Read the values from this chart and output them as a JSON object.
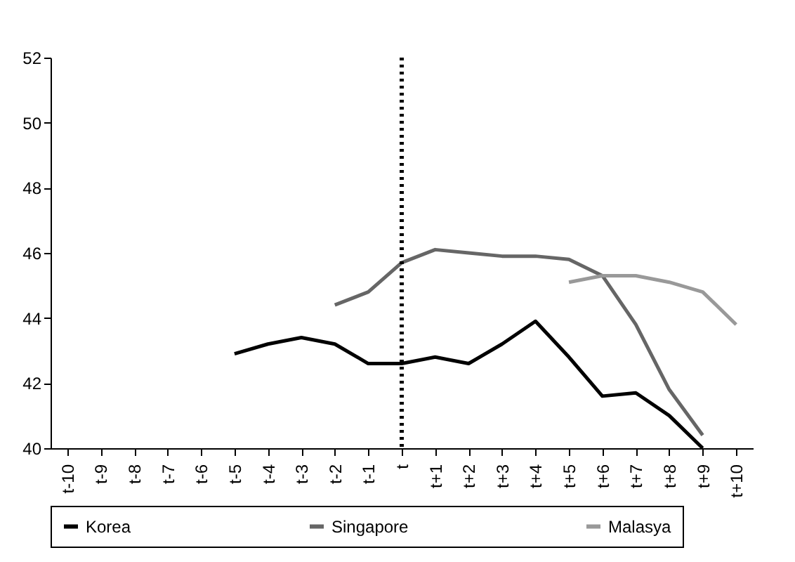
{
  "chart_data": {
    "type": "line",
    "categories": [
      "t-10",
      "t-9",
      "t-8",
      "t-7",
      "t-6",
      "t-5",
      "t-4",
      "t-3",
      "t-2",
      "t-1",
      "t",
      "t+1",
      "t+2",
      "t+3",
      "t+4",
      "t+5",
      "t+6",
      "t+7",
      "t+8",
      "t+9",
      "t+10"
    ],
    "series": [
      {
        "name": "Korea",
        "color": "#000000",
        "values": [
          null,
          null,
          null,
          null,
          null,
          42.9,
          43.2,
          43.4,
          43.2,
          42.6,
          42.6,
          42.8,
          42.6,
          43.2,
          43.9,
          42.8,
          41.6,
          41.7,
          41.0,
          40.0,
          null
        ]
      },
      {
        "name": "Singapore",
        "color": "#666666",
        "values": [
          null,
          null,
          null,
          null,
          null,
          null,
          null,
          null,
          44.4,
          44.8,
          45.7,
          46.1,
          46.0,
          45.9,
          45.9,
          45.8,
          45.3,
          43.8,
          41.8,
          40.4,
          null
        ]
      },
      {
        "name": "Malasya",
        "color": "#999999",
        "values": [
          null,
          null,
          null,
          null,
          null,
          null,
          null,
          null,
          null,
          null,
          null,
          null,
          null,
          null,
          null,
          45.1,
          45.3,
          45.3,
          45.1,
          44.8,
          43.8
        ]
      }
    ],
    "ylim": [
      40,
      52
    ],
    "yticks": [
      40,
      42,
      44,
      46,
      48,
      50,
      52
    ],
    "ref_lines": [
      {
        "axis": "x",
        "value": "t",
        "color": "#000000",
        "line_style": "dotted"
      }
    ],
    "grid": false,
    "legend": "bottom",
    "marker": "none",
    "line_style": "solid"
  }
}
